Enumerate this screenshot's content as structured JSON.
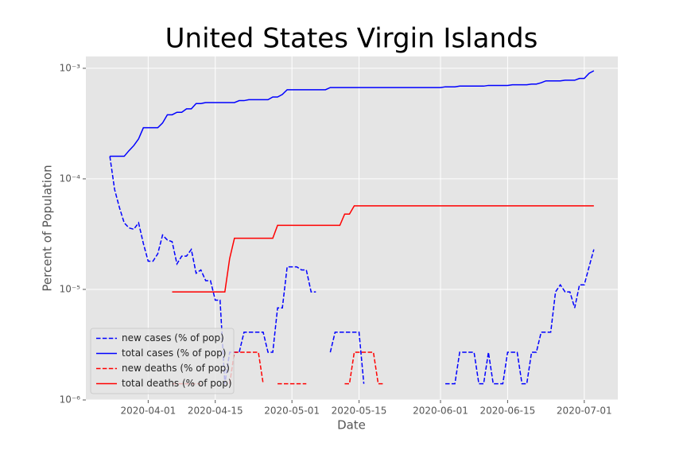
{
  "chart_data": {
    "type": "line",
    "title": "United States Virgin Islands",
    "xlabel": "Date",
    "ylabel": "Percent of Population",
    "log_y": true,
    "grid": true,
    "legend": "lower left",
    "xlim": [
      "2020-03-19",
      "2020-07-08"
    ],
    "xticks": [
      "2020-04-01",
      "2020-04-15",
      "2020-05-01",
      "2020-05-15",
      "2020-06-01",
      "2020-06-15",
      "2020-07-01"
    ],
    "ylim": [
      1e-06,
      0.00128
    ],
    "yticks": [
      {
        "value": 1e-06,
        "label": "10⁻⁶"
      },
      {
        "value": 1e-05,
        "label": "10⁻⁵"
      },
      {
        "value": 0.0001,
        "label": "10⁻⁴"
      },
      {
        "value": 0.001,
        "label": "10⁻³"
      }
    ],
    "x": [
      "2020-03-24",
      "2020-03-25",
      "2020-03-26",
      "2020-03-27",
      "2020-03-28",
      "2020-03-29",
      "2020-03-30",
      "2020-03-31",
      "2020-04-01",
      "2020-04-02",
      "2020-04-03",
      "2020-04-04",
      "2020-04-05",
      "2020-04-06",
      "2020-04-07",
      "2020-04-08",
      "2020-04-09",
      "2020-04-10",
      "2020-04-11",
      "2020-04-12",
      "2020-04-13",
      "2020-04-14",
      "2020-04-15",
      "2020-04-16",
      "2020-04-17",
      "2020-04-18",
      "2020-04-19",
      "2020-04-20",
      "2020-04-21",
      "2020-04-22",
      "2020-04-23",
      "2020-04-24",
      "2020-04-25",
      "2020-04-26",
      "2020-04-27",
      "2020-04-28",
      "2020-04-29",
      "2020-04-30",
      "2020-05-01",
      "2020-05-02",
      "2020-05-03",
      "2020-05-04",
      "2020-05-05",
      "2020-05-06",
      "2020-05-07",
      "2020-05-08",
      "2020-05-09",
      "2020-05-10",
      "2020-05-11",
      "2020-05-12",
      "2020-05-13",
      "2020-05-14",
      "2020-05-15",
      "2020-05-16",
      "2020-05-17",
      "2020-05-18",
      "2020-05-19",
      "2020-05-20",
      "2020-05-21",
      "2020-05-22",
      "2020-05-23",
      "2020-05-24",
      "2020-05-25",
      "2020-05-26",
      "2020-05-27",
      "2020-05-28",
      "2020-05-29",
      "2020-05-30",
      "2020-05-31",
      "2020-06-01",
      "2020-06-02",
      "2020-06-03",
      "2020-06-04",
      "2020-06-05",
      "2020-06-06",
      "2020-06-07",
      "2020-06-08",
      "2020-06-09",
      "2020-06-10",
      "2020-06-11",
      "2020-06-12",
      "2020-06-13",
      "2020-06-14",
      "2020-06-15",
      "2020-06-16",
      "2020-06-17",
      "2020-06-18",
      "2020-06-19",
      "2020-06-20",
      "2020-06-21",
      "2020-06-22",
      "2020-06-23",
      "2020-06-24",
      "2020-06-25",
      "2020-06-26",
      "2020-06-27",
      "2020-06-28",
      "2020-06-29",
      "2020-06-30",
      "2020-07-01",
      "2020-07-02",
      "2020-07-03"
    ],
    "series": [
      {
        "name": "new cases (% of pop)",
        "color": "#0000ff",
        "linestyle": "dashed",
        "values": [
          0.00016,
          8e-05,
          5.5e-05,
          4e-05,
          3.6e-05,
          3.5e-05,
          4e-05,
          2.6e-05,
          1.8e-05,
          1.8e-05,
          2.1e-05,
          3.1e-05,
          2.8e-05,
          2.7e-05,
          1.7e-05,
          2e-05,
          2e-05,
          2.3e-05,
          1.4e-05,
          1.5e-05,
          1.2e-05,
          1.2e-05,
          8e-06,
          8e-06,
          1.4e-06,
          2.7e-06,
          2.7e-06,
          2.7e-06,
          4.1e-06,
          4.1e-06,
          4.1e-06,
          4.1e-06,
          4.1e-06,
          2.7e-06,
          2.7e-06,
          6.8e-06,
          6.8e-06,
          1.6e-05,
          1.6e-05,
          1.6e-05,
          1.5e-05,
          1.5e-05,
          9.5e-06,
          9.5e-06,
          null,
          null,
          2.7e-06,
          4.1e-06,
          4.1e-06,
          4.1e-06,
          4.1e-06,
          4.1e-06,
          4.1e-06,
          1.4e-06,
          null,
          null,
          null,
          null,
          null,
          null,
          null,
          null,
          null,
          null,
          null,
          null,
          null,
          null,
          null,
          null,
          1.4e-06,
          1.4e-06,
          1.4e-06,
          2.7e-06,
          2.7e-06,
          2.7e-06,
          2.7e-06,
          1.4e-06,
          1.4e-06,
          2.7e-06,
          1.4e-06,
          1.4e-06,
          1.4e-06,
          2.7e-06,
          2.7e-06,
          2.7e-06,
          1.4e-06,
          1.4e-06,
          2.7e-06,
          2.7e-06,
          4.1e-06,
          4.1e-06,
          4.1e-06,
          9.5e-06,
          1.1e-05,
          9.5e-06,
          9.5e-06,
          6.8e-06,
          1.1e-05,
          1.1e-05,
          1.6e-05,
          2.3e-05
        ]
      },
      {
        "name": "total cases (% of pop)",
        "color": "#0000ff",
        "linestyle": "solid",
        "values": [
          0.00016,
          0.00016,
          0.00016,
          0.00016,
          0.00018,
          0.0002,
          0.00023,
          0.00029,
          0.00029,
          0.00029,
          0.00029,
          0.00032,
          0.00038,
          0.00038,
          0.0004,
          0.0004,
          0.00043,
          0.00043,
          0.00048,
          0.00048,
          0.00049,
          0.00049,
          0.00049,
          0.00049,
          0.00049,
          0.00049,
          0.00049,
          0.00051,
          0.00051,
          0.00052,
          0.00052,
          0.00052,
          0.00052,
          0.00052,
          0.00055,
          0.00055,
          0.00058,
          0.00064,
          0.00064,
          0.00064,
          0.00064,
          0.00064,
          0.00064,
          0.00064,
          0.00064,
          0.00064,
          0.00067,
          0.00067,
          0.00067,
          0.00067,
          0.00067,
          0.00067,
          0.00067,
          0.00067,
          0.00067,
          0.00067,
          0.00067,
          0.00067,
          0.00067,
          0.00067,
          0.00067,
          0.00067,
          0.00067,
          0.00067,
          0.00067,
          0.00067,
          0.00067,
          0.00067,
          0.00067,
          0.00067,
          0.00068,
          0.00068,
          0.00068,
          0.00069,
          0.00069,
          0.00069,
          0.00069,
          0.00069,
          0.00069,
          0.0007,
          0.0007,
          0.0007,
          0.0007,
          0.0007,
          0.00071,
          0.00071,
          0.00071,
          0.00071,
          0.00072,
          0.00072,
          0.00074,
          0.00077,
          0.00077,
          0.00077,
          0.00077,
          0.00078,
          0.00078,
          0.00078,
          0.00081,
          0.00081,
          0.0009,
          0.00095
        ]
      },
      {
        "name": "new deaths (% of pop)",
        "color": "#ff0000",
        "linestyle": "dashed",
        "values": [
          null,
          null,
          null,
          null,
          null,
          null,
          null,
          null,
          null,
          null,
          null,
          null,
          null,
          1.4e-06,
          1.4e-06,
          1.4e-06,
          1.4e-06,
          1.4e-06,
          1.4e-06,
          1.4e-06,
          null,
          null,
          null,
          null,
          null,
          1.4e-06,
          2.7e-06,
          2.7e-06,
          2.7e-06,
          2.7e-06,
          2.7e-06,
          2.7e-06,
          1.4e-06,
          null,
          null,
          1.4e-06,
          1.4e-06,
          1.4e-06,
          1.4e-06,
          1.4e-06,
          1.4e-06,
          1.4e-06,
          null,
          null,
          null,
          null,
          null,
          null,
          null,
          1.4e-06,
          1.4e-06,
          2.7e-06,
          2.7e-06,
          2.7e-06,
          2.7e-06,
          2.7e-06,
          1.4e-06,
          1.4e-06,
          null,
          null,
          null,
          null,
          null,
          null,
          null,
          null,
          null,
          null,
          null,
          null,
          null,
          null,
          null,
          null,
          null,
          null,
          null,
          null,
          null,
          null,
          null,
          null,
          null,
          null,
          null,
          null,
          null,
          null,
          null,
          null,
          null,
          null,
          null,
          null,
          null,
          null,
          null,
          null,
          null,
          null,
          null,
          null
        ]
      },
      {
        "name": "total deaths (% of pop)",
        "color": "#ff0000",
        "linestyle": "solid",
        "values": [
          null,
          null,
          null,
          null,
          null,
          null,
          null,
          null,
          null,
          null,
          null,
          null,
          null,
          9.5e-06,
          9.5e-06,
          9.5e-06,
          9.5e-06,
          9.5e-06,
          9.5e-06,
          9.5e-06,
          9.5e-06,
          9.5e-06,
          9.5e-06,
          9.5e-06,
          9.5e-06,
          1.9e-05,
          2.9e-05,
          2.9e-05,
          2.9e-05,
          2.9e-05,
          2.9e-05,
          2.9e-05,
          2.9e-05,
          2.9e-05,
          2.9e-05,
          3.8e-05,
          3.8e-05,
          3.8e-05,
          3.8e-05,
          3.8e-05,
          3.8e-05,
          3.8e-05,
          3.8e-05,
          3.8e-05,
          3.8e-05,
          3.8e-05,
          3.8e-05,
          3.8e-05,
          3.8e-05,
          4.8e-05,
          4.8e-05,
          5.7e-05,
          5.7e-05,
          5.7e-05,
          5.7e-05,
          5.7e-05,
          5.7e-05,
          5.7e-05,
          5.7e-05,
          5.7e-05,
          5.7e-05,
          5.7e-05,
          5.7e-05,
          5.7e-05,
          5.7e-05,
          5.7e-05,
          5.7e-05,
          5.7e-05,
          5.7e-05,
          5.7e-05,
          5.7e-05,
          5.7e-05,
          5.7e-05,
          5.7e-05,
          5.7e-05,
          5.7e-05,
          5.7e-05,
          5.7e-05,
          5.7e-05,
          5.7e-05,
          5.7e-05,
          5.7e-05,
          5.7e-05,
          5.7e-05,
          5.7e-05,
          5.7e-05,
          5.7e-05,
          5.7e-05,
          5.7e-05,
          5.7e-05,
          5.7e-05,
          5.7e-05,
          5.7e-05,
          5.7e-05,
          5.7e-05,
          5.7e-05,
          5.7e-05,
          5.7e-05,
          5.7e-05,
          5.7e-05,
          5.7e-05,
          5.7e-05
        ]
      }
    ]
  }
}
